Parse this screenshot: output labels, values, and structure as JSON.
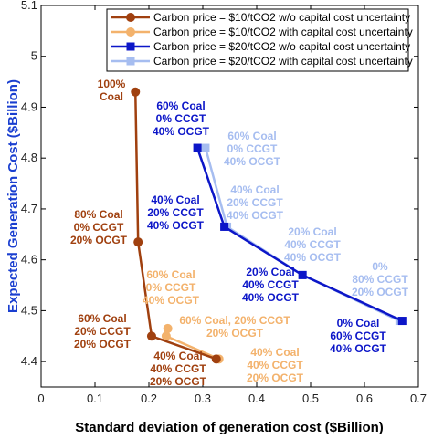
{
  "chart_data": {
    "type": "line",
    "xlabel": "Standard deviation of generation cost ($Billion)",
    "ylabel": "Expected Generation Cost ($Billion)",
    "xlim": [
      0,
      0.7
    ],
    "ylim": [
      4.35,
      5.1
    ],
    "xticks": [
      "0",
      "0.1",
      "0.2",
      "0.3",
      "0.4",
      "0.5",
      "0.6",
      "0.7"
    ],
    "yticks": [
      "4.4",
      "4.5",
      "4.6",
      "4.7",
      "4.8",
      "4.9",
      "5",
      "5.1"
    ],
    "grid": false,
    "legend_position": "top-right",
    "series": [
      {
        "name": "Carbon price = $10/tCO2 w/o capital cost uncertainty",
        "color": "#a0400f",
        "marker": "circle",
        "points": [
          [
            0.175,
            4.93
          ],
          [
            0.18,
            4.635
          ],
          [
            0.205,
            4.45
          ],
          [
            0.325,
            4.405
          ]
        ]
      },
      {
        "name": "Carbon price = $10/tCO2 with capital cost uncertainty",
        "color": "#f3b26c",
        "marker": "circle",
        "points": [
          [
            0.235,
            4.465
          ],
          [
            0.232,
            4.45
          ],
          [
            0.33,
            4.405
          ]
        ]
      },
      {
        "name": "Carbon price = $20/tCO2 w/o capital cost uncertainty",
        "color": "#0c16c8",
        "marker": "square",
        "points": [
          [
            0.29,
            4.82
          ],
          [
            0.34,
            4.665
          ],
          [
            0.485,
            4.57
          ],
          [
            0.67,
            4.48
          ]
        ]
      },
      {
        "name": "Carbon price = $20/tCO2 with capital cost uncertainty",
        "color": "#a6bdf0",
        "marker": "square",
        "points": [
          [
            0.305,
            4.82
          ],
          [
            0.345,
            4.665
          ],
          [
            0.485,
            4.57
          ],
          [
            0.665,
            4.48
          ]
        ]
      }
    ],
    "annotations": [
      {
        "lines": [
          "100%",
          "Coal"
        ],
        "color": "#a0400f"
      },
      {
        "lines": [
          "80% Coal",
          "0%   CCGT",
          "20% OCGT"
        ],
        "color": "#a0400f"
      },
      {
        "lines": [
          "60% Coal",
          "20% CCGT",
          "20% OCGT"
        ],
        "color": "#a0400f"
      },
      {
        "lines": [
          "40% Coal",
          "40% CCGT",
          "20% OCGT"
        ],
        "color": "#a0400f"
      },
      {
        "lines": [
          "60% Coal",
          "0%   CCGT",
          "40% OCGT"
        ],
        "color": "#f3b26c"
      },
      {
        "lines": [
          "60% Coal, 20% CCGT",
          "20% OCGT"
        ],
        "color": "#f3b26c"
      },
      {
        "lines": [
          "40% Coal",
          "40% CCGT",
          "20% OCGT"
        ],
        "color": "#f3b26c"
      },
      {
        "lines": [
          "60% Coal",
          "0%   CCGT",
          "40% OCGT"
        ],
        "color": "#0c16c8"
      },
      {
        "lines": [
          "40% Coal",
          "20% CCGT",
          "40% OCGT"
        ],
        "color": "#0c16c8"
      },
      {
        "lines": [
          "20% Coal",
          "40% CCGT",
          "40% OCGT"
        ],
        "color": "#0c16c8"
      },
      {
        "lines": [
          "0%   Coal",
          "60% CCGT",
          "40% OCGT"
        ],
        "color": "#0c16c8"
      },
      {
        "lines": [
          "60% Coal",
          "0%   CCGT",
          "40% OCGT"
        ],
        "color": "#a6bdf0"
      },
      {
        "lines": [
          "40% Coal",
          "20% CCGT",
          "40% OCGT"
        ],
        "color": "#a6bdf0"
      },
      {
        "lines": [
          "20% Coal",
          "40% CCGT",
          "40% OCGT"
        ],
        "color": "#a6bdf0"
      },
      {
        "lines": [
          "0%",
          "80% CCGT",
          "20% OCGT"
        ],
        "color": "#a6bdf0"
      }
    ]
  }
}
